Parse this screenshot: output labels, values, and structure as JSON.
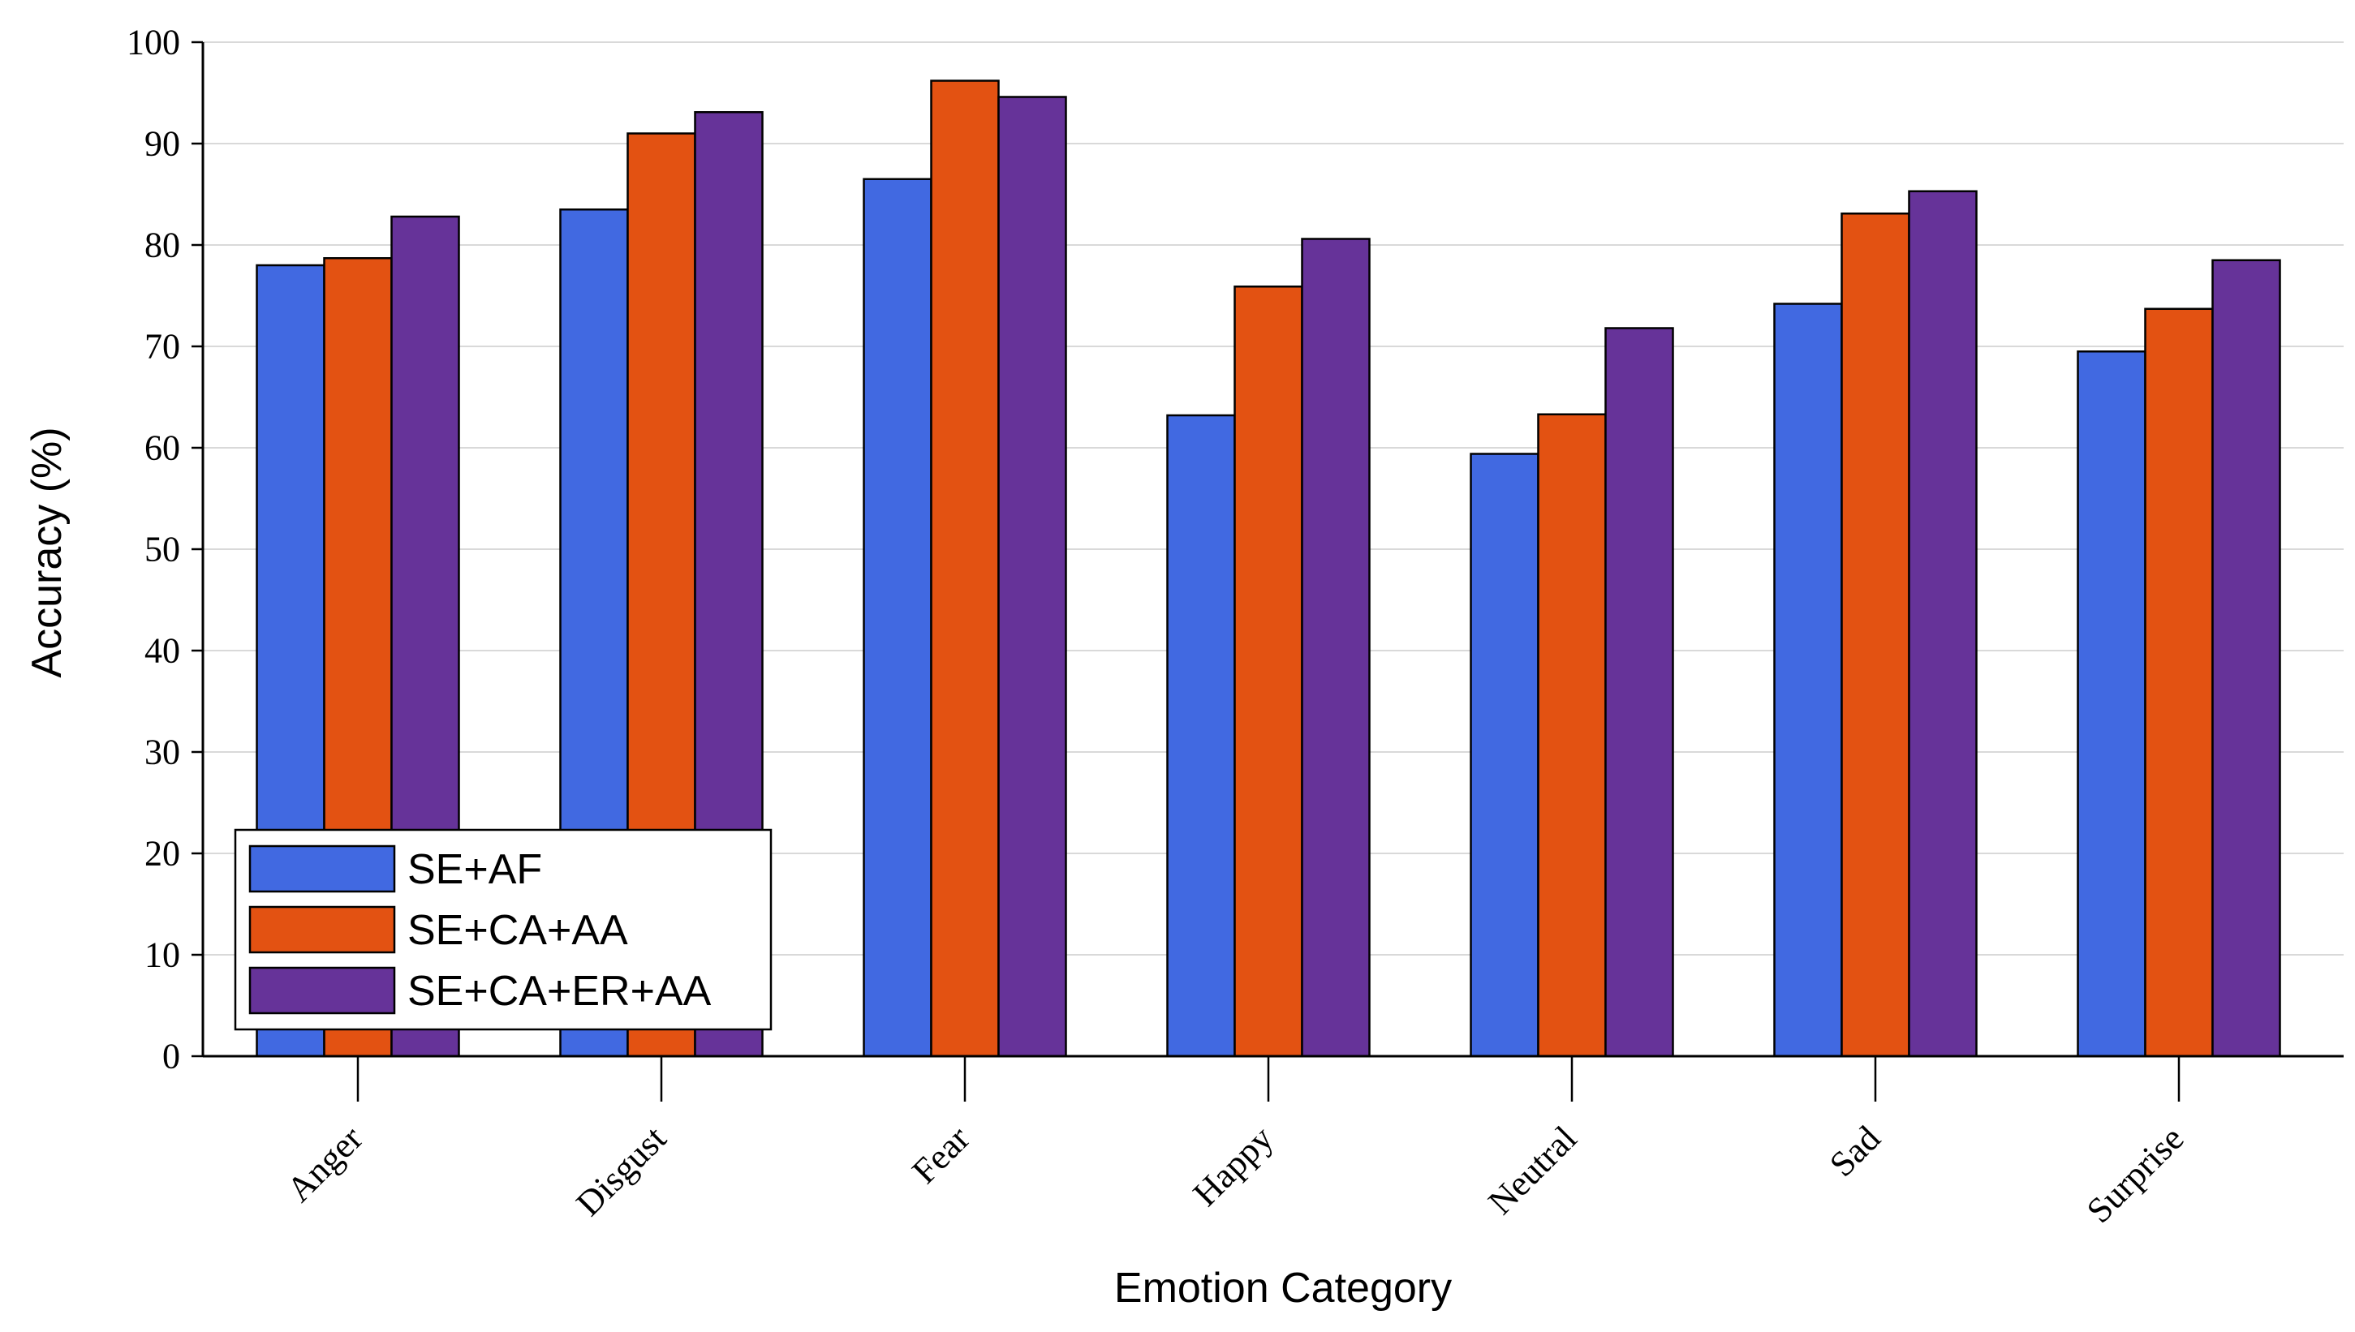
{
  "chart_data": {
    "type": "bar",
    "title": "",
    "xlabel": "Emotion Category",
    "ylabel": "Accuracy (%)",
    "ylim": [
      0,
      100
    ],
    "yticks": [
      0,
      10,
      20,
      30,
      40,
      50,
      60,
      70,
      80,
      90,
      100
    ],
    "grid": "horizontal",
    "legend_position": "bottom-left",
    "categories": [
      "Anger",
      "Disgust",
      "Fear",
      "Happy",
      "Neutral",
      "Sad",
      "Surprise"
    ],
    "series": [
      {
        "name": "SE+AF",
        "color": "#4169E1",
        "values": [
          78.0,
          83.5,
          86.5,
          63.2,
          59.4,
          74.2,
          69.5
        ]
      },
      {
        "name": "SE+CA+AA",
        "color": "#E35212",
        "values": [
          78.7,
          91.0,
          96.2,
          75.9,
          63.3,
          83.1,
          73.7
        ]
      },
      {
        "name": "SE+CA+ER+AA",
        "color": "#663399",
        "values": [
          82.8,
          93.1,
          94.6,
          80.6,
          71.8,
          85.3,
          78.5
        ]
      }
    ]
  }
}
